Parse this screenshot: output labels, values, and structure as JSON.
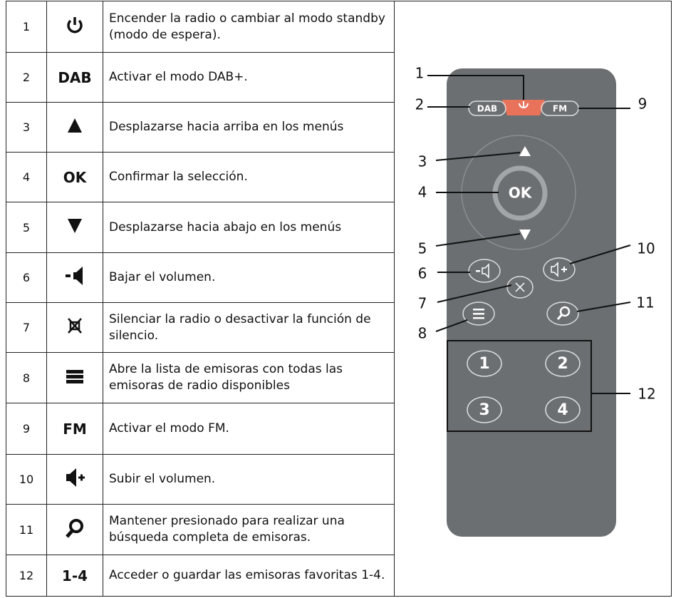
{
  "table": {
    "rows": [
      {
        "number": 1,
        "description": "Encender la radio o cambiar al modo standby (modo de espera)."
      },
      {
        "number": 2,
        "icon": "DAB",
        "description": "Activar el modo DAB+."
      },
      {
        "number": 3,
        "description": "Desplazarse hacia arriba en los menús"
      },
      {
        "number": 4,
        "icon": "OK",
        "description": "Confirmar la selección."
      },
      {
        "number": 5,
        "description": "Desplazarse hacia abajo en los menús"
      },
      {
        "number": 6,
        "description": "Bajar el volumen."
      },
      {
        "number": 7,
        "description": "Silenciar la radio o desactivar la función de silencio."
      },
      {
        "number": 8,
        "description": "Abre la lista de emisoras con todas las emisoras de radio disponibles"
      },
      {
        "number": 9,
        "icon": "FM",
        "description": "Activar el modo FM."
      },
      {
        "number": 10,
        "description": "Subir el volumen."
      },
      {
        "number": 11,
        "description": "Mantener presionado para realizar una búsqueda completa de emisoras."
      },
      {
        "number": 12,
        "icon": "1-4",
        "description": "Acceder o guardar las emisoras favoritas 1-4."
      }
    ]
  },
  "remote": {
    "buttons": {
      "dab": "DAB",
      "fm": "FM",
      "ok": "OK",
      "presets": [
        "1",
        "2",
        "3",
        "4"
      ]
    },
    "callouts": [
      "1",
      "2",
      "3",
      "4",
      "5",
      "6",
      "7",
      "8",
      "9",
      "10",
      "11",
      "12"
    ]
  }
}
